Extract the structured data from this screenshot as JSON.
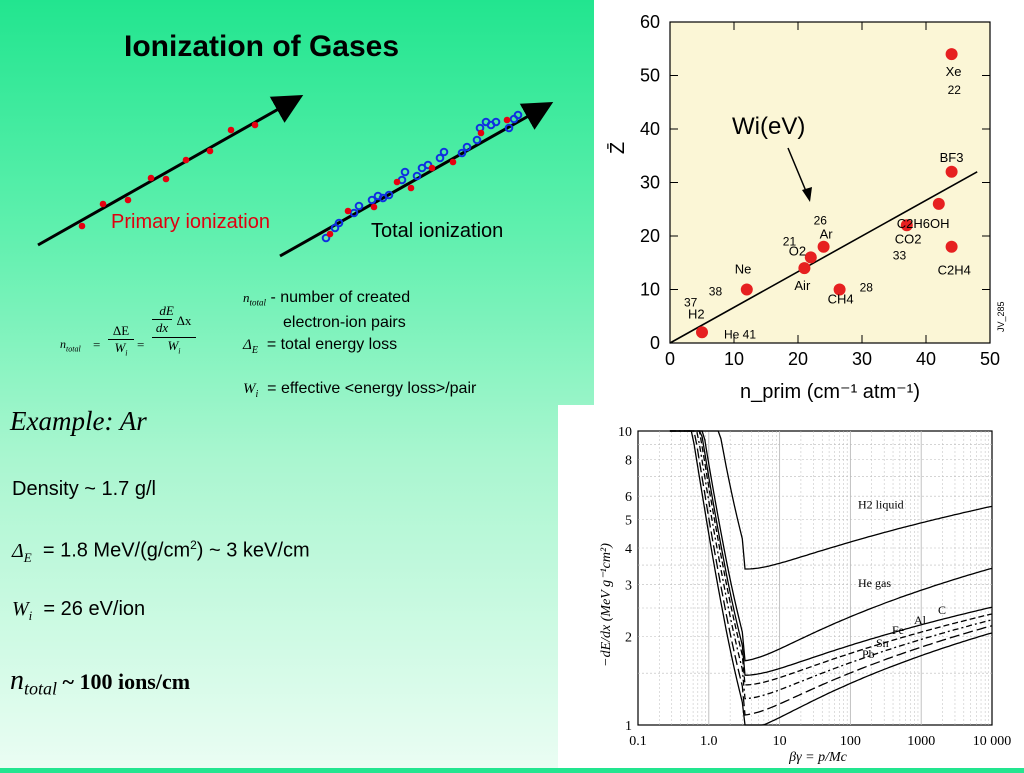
{
  "title": "Ionization of Gases",
  "diagram": {
    "primary_label": "Primary ionization",
    "total_label": "Total ionization"
  },
  "formula": {
    "lhs_n": "n",
    "lhs_sub": "total",
    "eq": "=",
    "frac1_num": "ΔE",
    "frac1_den": "W",
    "frac1_den_sub": "i",
    "frac2_num_a": "dE",
    "frac2_num_b": "Δx",
    "frac2_num_c": "dx",
    "frac2_den": "W",
    "frac2_den_sub": "i"
  },
  "definitions": {
    "ntotal_sym": "n",
    "ntotal_sub": "total",
    "ntotal_text_1": "- number of created",
    "ntotal_text_2": "electron-ion pairs",
    "de_sym": "Δ",
    "de_sub": "E",
    "de_text": "= total energy loss",
    "wi_sym": "W",
    "wi_sub": "i",
    "wi_text": "= effective <energy loss>/pair"
  },
  "example": {
    "heading": "Example: Ar",
    "density": "Density ~ 1.7 g/l",
    "de_sym": "Δ",
    "de_sub": "E",
    "de_value": "= 1.8 MeV/(g/cm",
    "de_sup": "2",
    "de_value_2": ") ~ 3 keV/cm",
    "wi_sym": "W",
    "wi_sub": "i",
    "wi_value": "= 26 eV/ion",
    "nt_sym": "n",
    "nt_sub": "total",
    "nt_value": "~ 100 ions/cm"
  },
  "chart_data": [
    {
      "type": "scatter",
      "title": "",
      "xlabel": "n_prim (cm⁻¹ atm⁻¹)",
      "ylabel": "Z̄",
      "xlim": [
        0,
        50
      ],
      "ylim": [
        0,
        60
      ],
      "xticks": [
        0,
        10,
        20,
        30,
        40,
        50
      ],
      "yticks": [
        0,
        10,
        20,
        30,
        40,
        50,
        60
      ],
      "annotation": "Wi(eV)",
      "corner_note": "JV_285",
      "fit_line": {
        "x": [
          0,
          48
        ],
        "y": [
          0,
          32
        ]
      },
      "points": [
        {
          "x": 5,
          "y": 2,
          "label": "H2",
          "w": "37 / 41",
          "extra": "He"
        },
        {
          "x": 12,
          "y": 10,
          "label": "Ne",
          "w": "38"
        },
        {
          "x": 21,
          "y": 14,
          "label": "Air",
          "w": ""
        },
        {
          "x": 22,
          "y": 16,
          "label": "O2",
          "w": "21"
        },
        {
          "x": 24,
          "y": 18,
          "label": "Ar",
          "w": "26"
        },
        {
          "x": 26.5,
          "y": 10,
          "label": "CH4",
          "w": "28"
        },
        {
          "x": 37,
          "y": 22,
          "label": "CO2",
          "w": "33"
        },
        {
          "x": 42,
          "y": 26,
          "label": "C2H6OH",
          "w": ""
        },
        {
          "x": 44,
          "y": 18,
          "label": "C2H4",
          "w": ""
        },
        {
          "x": 44,
          "y": 32,
          "label": "BF3",
          "w": ""
        },
        {
          "x": 44,
          "y": 54,
          "label": "Xe",
          "w": "22"
        }
      ]
    },
    {
      "type": "line",
      "title": "",
      "xlabel": "βγ = p/Mc",
      "ylabel": "−dE/dx (MeV g⁻¹cm²)",
      "xscale": "log",
      "yscale": "log",
      "xlim": [
        0.1,
        10000
      ],
      "ylim": [
        1,
        10
      ],
      "xticks": [
        "0.1",
        "1.0",
        "10",
        "100",
        "1000",
        "10 000"
      ],
      "yticks": [
        "1",
        "2",
        "3",
        "4",
        "5",
        "6",
        "8",
        "10"
      ],
      "series": [
        {
          "name": "H2 liquid",
          "min": 4.03,
          "plateau": 5.8
        },
        {
          "name": "He gas",
          "min": 1.94,
          "plateau": 3.35
        },
        {
          "name": "C",
          "min": 1.75,
          "plateau": 2.6
        },
        {
          "name": "Al",
          "min": 1.62,
          "plateau": 2.45
        },
        {
          "name": "Fe",
          "min": 1.45,
          "plateau": 2.3
        },
        {
          "name": "Sn",
          "min": 1.27,
          "plateau": 2.15
        },
        {
          "name": "Pb",
          "min": 1.12,
          "plateau": 2.0
        }
      ]
    }
  ]
}
